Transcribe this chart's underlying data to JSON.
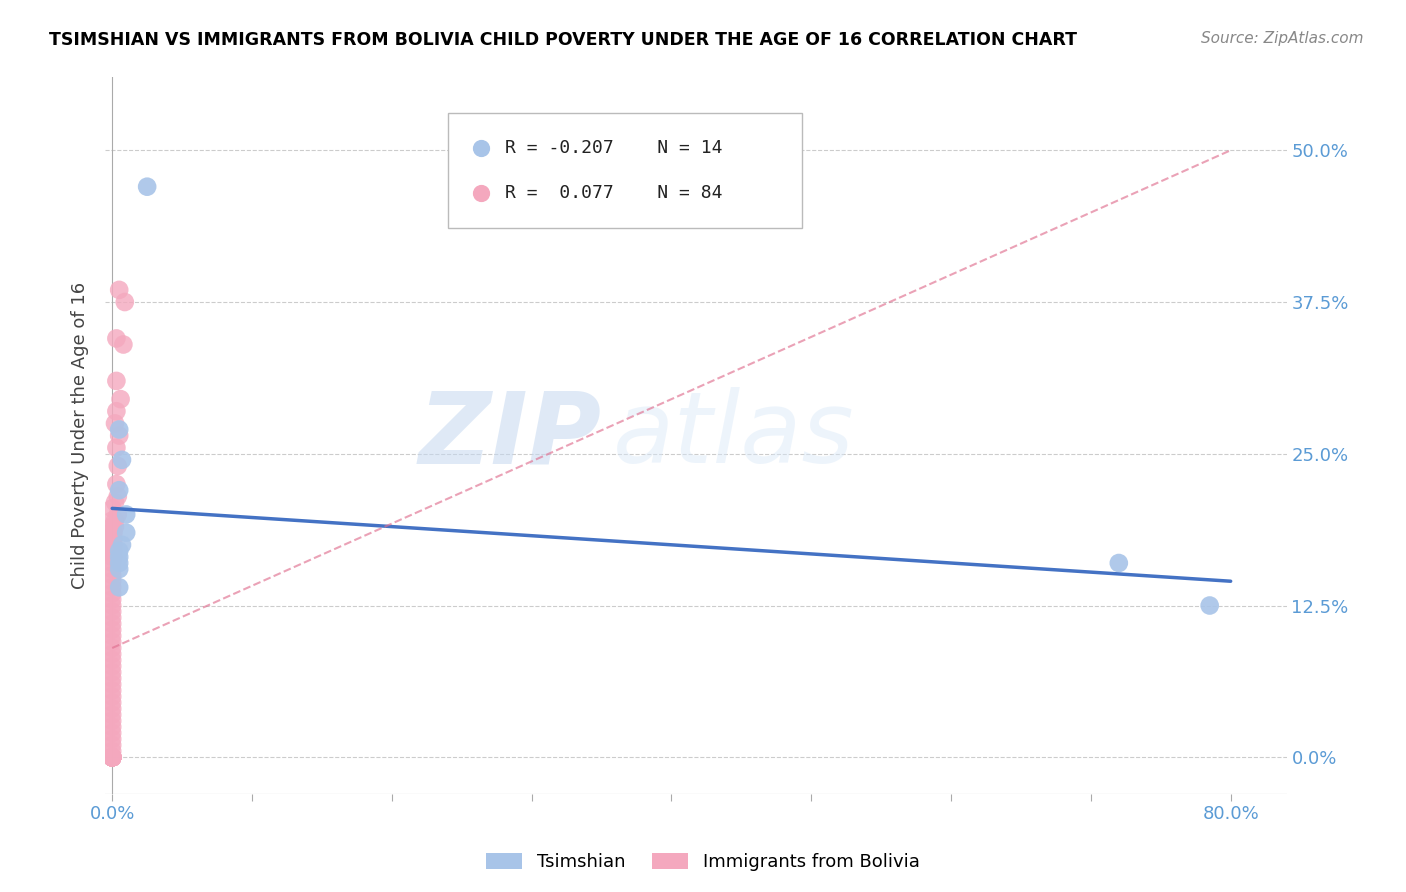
{
  "title": "TSIMSHIAN VS IMMIGRANTS FROM BOLIVIA CHILD POVERTY UNDER THE AGE OF 16 CORRELATION CHART",
  "source": "Source: ZipAtlas.com",
  "ylabel": "Child Poverty Under the Age of 16",
  "ytick_labels": [
    "0.0%",
    "12.5%",
    "25.0%",
    "37.5%",
    "50.0%"
  ],
  "ytick_values": [
    0.0,
    0.125,
    0.25,
    0.375,
    0.5
  ],
  "xtick_values": [
    0.0,
    0.1,
    0.2,
    0.3,
    0.4,
    0.5,
    0.6,
    0.7,
    0.8
  ],
  "xlim": [
    -0.005,
    0.84
  ],
  "ylim": [
    -0.03,
    0.56
  ],
  "tsimshian_color": "#a8c4e8",
  "bolivia_color": "#f4a8be",
  "tsimshian_line_color": "#4472c4",
  "bolivia_line_color": "#e07090",
  "tsimshian_line_x0": 0.0,
  "tsimshian_line_x1": 0.8,
  "tsimshian_line_y0": 0.205,
  "tsimshian_line_y1": 0.145,
  "bolivia_line_x0": 0.0,
  "bolivia_line_x1": 0.8,
  "bolivia_line_y0": 0.09,
  "bolivia_line_y1": 0.5,
  "tsimshian_points_x": [
    0.025,
    0.005,
    0.007,
    0.005,
    0.01,
    0.01,
    0.007,
    0.005,
    0.005,
    0.005,
    0.005,
    0.005,
    0.72,
    0.785
  ],
  "tsimshian_points_y": [
    0.47,
    0.27,
    0.245,
    0.22,
    0.2,
    0.185,
    0.175,
    0.17,
    0.165,
    0.16,
    0.155,
    0.14,
    0.16,
    0.125
  ],
  "bolivia_points_x": [
    0.005,
    0.009,
    0.003,
    0.008,
    0.003,
    0.006,
    0.003,
    0.002,
    0.005,
    0.003,
    0.004,
    0.003,
    0.004,
    0.002,
    0.004,
    0.002,
    0.002,
    0.001,
    0.001,
    0.001,
    0.001,
    0.001,
    0.0,
    0.0,
    0.0,
    0.0,
    0.0,
    0.0,
    0.0,
    0.0,
    0.0,
    0.0,
    0.0,
    0.0,
    0.0,
    0.0,
    0.0,
    0.0,
    0.0,
    0.0,
    0.0,
    0.0,
    0.0,
    0.0,
    0.0,
    0.0,
    0.0,
    0.0,
    0.0,
    0.0,
    0.0,
    0.0,
    0.0,
    0.0,
    0.0,
    0.0,
    0.0,
    0.0,
    0.0,
    0.0,
    0.0,
    0.0,
    0.0,
    0.0,
    0.0,
    0.0,
    0.0,
    0.0,
    0.0,
    0.0,
    0.0,
    0.0,
    0.0,
    0.0,
    0.0,
    0.0,
    0.0,
    0.0,
    0.0,
    0.0,
    0.0,
    0.0,
    0.0,
    0.0
  ],
  "bolivia_points_y": [
    0.385,
    0.375,
    0.345,
    0.34,
    0.31,
    0.295,
    0.285,
    0.275,
    0.265,
    0.255,
    0.24,
    0.225,
    0.215,
    0.21,
    0.2,
    0.195,
    0.19,
    0.185,
    0.18,
    0.175,
    0.17,
    0.165,
    0.205,
    0.195,
    0.19,
    0.185,
    0.18,
    0.175,
    0.17,
    0.165,
    0.16,
    0.155,
    0.15,
    0.145,
    0.14,
    0.135,
    0.13,
    0.125,
    0.12,
    0.115,
    0.11,
    0.105,
    0.1,
    0.095,
    0.09,
    0.085,
    0.08,
    0.075,
    0.07,
    0.065,
    0.06,
    0.055,
    0.05,
    0.045,
    0.04,
    0.035,
    0.03,
    0.025,
    0.02,
    0.015,
    0.01,
    0.005,
    0.0,
    0.0,
    0.0,
    0.0,
    0.0,
    0.0,
    0.0,
    0.0,
    0.0,
    0.0,
    0.0,
    0.0,
    0.0,
    0.0,
    0.0,
    0.0,
    0.0,
    0.0,
    0.0,
    0.0,
    0.0,
    0.0
  ],
  "legend_R1": "R = -0.207",
  "legend_N1": "N = 14",
  "legend_R2": "R =  0.077",
  "legend_N2": "N = 84",
  "watermark_ZIP": "ZIP",
  "watermark_atlas": "atlas"
}
